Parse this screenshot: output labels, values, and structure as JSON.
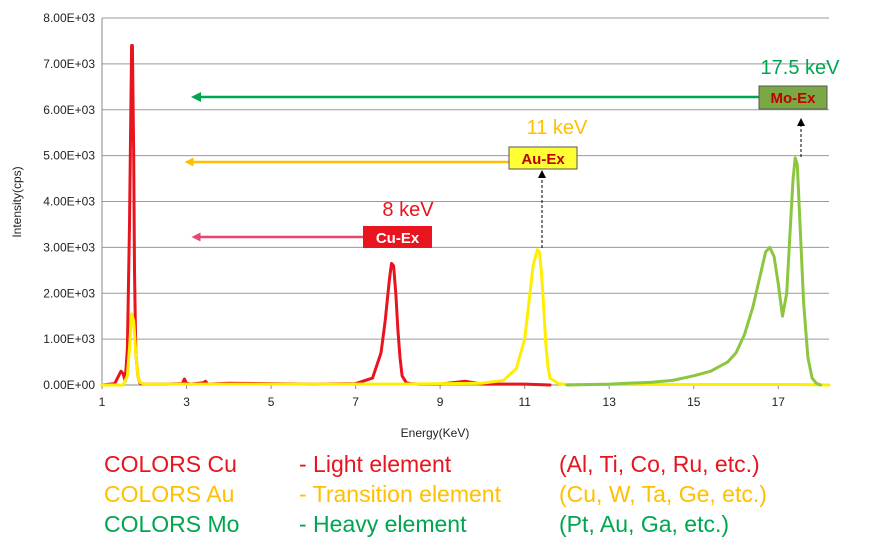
{
  "chart_data": {
    "type": "line",
    "xlabel": "Energy(KeV)",
    "ylabel": "Intensity(cps)",
    "xlim": [
      1,
      18.2
    ],
    "ylim": [
      0,
      8000
    ],
    "x_ticks": [
      1,
      3,
      5,
      7,
      9,
      11,
      13,
      15,
      17
    ],
    "y_ticks": [
      0,
      1000,
      2000,
      3000,
      4000,
      5000,
      6000,
      7000,
      8000
    ],
    "y_tick_labels": [
      "0.00E+00",
      "1.00E+03",
      "2.00E+03",
      "3.00E+03",
      "4.00E+03",
      "5.00E+03",
      "6.00E+03",
      "7.00E+03",
      "8.00E+03"
    ],
    "grid": "horizontal",
    "series": [
      {
        "color": "#e8141e",
        "x": [
          1.0,
          1.3,
          1.45,
          1.5,
          1.55,
          1.6,
          1.65,
          1.7,
          1.72,
          1.75,
          1.77,
          1.8,
          1.85,
          1.9,
          2.0,
          2.5,
          2.9,
          2.95,
          3.0,
          3.1,
          3.4,
          3.45,
          3.5,
          4.0,
          6.0,
          7.0,
          7.4,
          7.6,
          7.7,
          7.8,
          7.85,
          7.9,
          7.95,
          8.0,
          8.05,
          8.1,
          8.2,
          8.3,
          8.5,
          9.0,
          9.6,
          10.0,
          11.0,
          11.6
        ],
        "y": [
          0,
          30,
          300,
          250,
          80,
          800,
          3500,
          7400,
          7400,
          5000,
          2500,
          700,
          200,
          40,
          20,
          20,
          30,
          130,
          40,
          20,
          50,
          80,
          20,
          40,
          20,
          30,
          150,
          700,
          1400,
          2300,
          2650,
          2600,
          2000,
          1200,
          600,
          200,
          50,
          30,
          20,
          20,
          80,
          20,
          20,
          0
        ]
      },
      {
        "color": "#ffee00",
        "x": [
          1.0,
          1.5,
          1.6,
          1.65,
          1.7,
          1.75,
          1.8,
          1.85,
          1.9,
          2.0,
          3.0,
          5.0,
          8.0,
          10.0,
          10.5,
          10.8,
          11.0,
          11.1,
          11.2,
          11.3,
          11.35,
          11.4,
          11.45,
          11.5,
          11.55,
          11.6,
          11.8,
          12.0,
          14.0,
          16.0,
          17.5,
          18.2
        ],
        "y": [
          0,
          0,
          200,
          800,
          1550,
          1400,
          700,
          200,
          60,
          20,
          20,
          20,
          20,
          40,
          100,
          350,
          1000,
          1800,
          2600,
          2950,
          2900,
          2400,
          1700,
          900,
          400,
          150,
          30,
          10,
          10,
          10,
          10,
          0
        ]
      },
      {
        "color": "#8cc63f",
        "x": [
          12.0,
          13.0,
          14.0,
          14.5,
          15.0,
          15.4,
          15.8,
          16.0,
          16.2,
          16.4,
          16.6,
          16.7,
          16.8,
          16.9,
          17.0,
          17.1,
          17.2,
          17.3,
          17.35,
          17.4,
          17.45,
          17.5,
          17.6,
          17.7,
          17.8,
          17.9,
          18.0
        ],
        "y": [
          0,
          20,
          60,
          100,
          200,
          300,
          500,
          700,
          1100,
          1700,
          2500,
          2900,
          3000,
          2800,
          2200,
          1500,
          2000,
          3700,
          4500,
          4950,
          4800,
          3800,
          1800,
          600,
          150,
          40,
          0
        ]
      }
    ],
    "annotations": {
      "cu": {
        "energy": "8 keV",
        "label": "Cu-Ex",
        "color": "#e8141e",
        "arrow_color": "#e8466e"
      },
      "au": {
        "energy": "11 keV",
        "label": "Au-Ex",
        "color": "#ffc000",
        "box_fill": "#ffff33",
        "text_color": "#c00000"
      },
      "mo": {
        "energy": "17.5 keV",
        "label": "Mo-Ex",
        "color": "#00a550",
        "box_fill": "#7aa843",
        "text_color": "#c00000"
      }
    }
  },
  "legend_rows": [
    {
      "name": "COLORS Cu",
      "desc": "- Light element",
      "examples": "(Al, Ti, Co, Ru, etc.)",
      "color": "#e8141e"
    },
    {
      "name": "COLORS Au",
      "desc": "- Transition element",
      "examples": "(Cu, W, Ta, Ge, etc.)",
      "color": "#ffc000"
    },
    {
      "name": "COLORS Mo",
      "desc": "- Heavy element",
      "examples": "(Pt, Au, Ga, etc.)",
      "color": "#00a550"
    }
  ]
}
